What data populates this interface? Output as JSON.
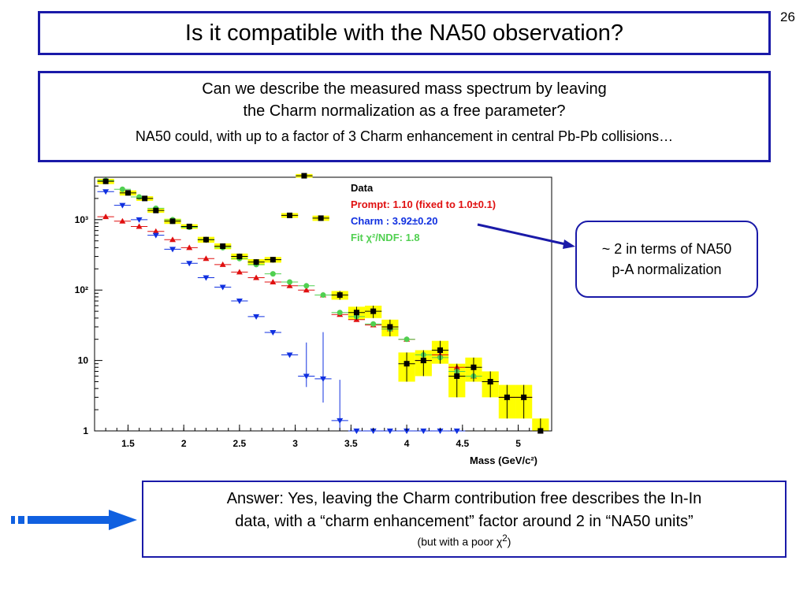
{
  "slide": {
    "number": "26",
    "title": "Is it compatible with the NA50 observation?",
    "question_line1": "Can we describe the measured mass spectrum by leaving",
    "question_line2": "the Charm normalization as a free parameter?",
    "note": "NA50 could, with up to a factor of 3 Charm enhancement in central Pb-Pb collisions…",
    "callout_line1": "~ 2 in terms of NA50",
    "callout_line2": "p-A normalization",
    "answer_line1": "Answer: Yes, leaving the Charm contribution free describes the In-In",
    "answer_line2": "data, with a “charm enhancement” factor around 2 in “NA50 units”",
    "answer_note_prefix": "(but with a poor ",
    "answer_note_chi": "χ",
    "answer_note_sup": "2",
    "answer_note_suffix": ")"
  },
  "colors": {
    "border": "#1a1aa8",
    "data": "#000000",
    "prompt": "#e01010",
    "charm": "#1030e0",
    "fit": "#50d050",
    "error_band": "#ffff00",
    "arrow": "#1060e0"
  },
  "chart_data": {
    "type": "scatter",
    "xlabel": "Mass (GeV/c²)",
    "ylabel": "",
    "xlim": [
      1.2,
      5.3
    ],
    "ylim": [
      1,
      4000
    ],
    "yscale": "log",
    "xticks": [
      "1.5",
      "2",
      "2.5",
      "3",
      "3.5",
      "4",
      "4.5",
      "5"
    ],
    "yticks": [
      "1",
      "10",
      "10²",
      "10³"
    ],
    "legend": {
      "position": "top-right",
      "entries": [
        {
          "text": "Data",
          "color": "#000000"
        },
        {
          "text": "Prompt: 1.10 (fixed to 1.0±0.1)",
          "color": "#e01010"
        },
        {
          "text": "Charm : 3.92±0.20",
          "color": "#1030e0"
        },
        {
          "text": "Fit   χ²/NDF:  1.8",
          "color": "#50d050"
        }
      ]
    },
    "series": [
      {
        "name": "Data",
        "x": [
          1.3,
          1.5,
          1.65,
          1.75,
          1.9,
          2.05,
          2.2,
          2.35,
          2.5,
          2.65,
          2.8,
          3.08,
          2.95,
          3.23,
          3.4,
          3.55,
          3.7,
          3.85,
          4.0,
          4.15,
          4.3,
          4.45,
          4.6,
          4.75,
          4.9,
          5.05,
          5.2
        ],
        "y": [
          3500,
          2400,
          2000,
          1350,
          950,
          800,
          520,
          420,
          300,
          250,
          270,
          4200,
          1150,
          1050,
          85,
          48,
          50,
          30,
          9,
          10,
          14,
          6,
          8,
          5,
          3,
          3,
          1
        ],
        "y_err": [
          300,
          200,
          150,
          100,
          80,
          60,
          50,
          40,
          30,
          25,
          25,
          250,
          90,
          90,
          12,
          10,
          10,
          8,
          4,
          4,
          5,
          3,
          3,
          2,
          1.5,
          1.5,
          0.5
        ]
      },
      {
        "name": "Prompt",
        "x": [
          1.3,
          1.45,
          1.6,
          1.75,
          1.9,
          2.05,
          2.2,
          2.35,
          2.5,
          2.65,
          2.8,
          2.95,
          3.1,
          3.25,
          3.4,
          3.55,
          3.7,
          3.85,
          4.0,
          4.15,
          4.3,
          4.45,
          4.6,
          4.75,
          4.9,
          5.05,
          5.2
        ],
        "y": [
          1100,
          950,
          800,
          680,
          520,
          400,
          280,
          230,
          180,
          150,
          130,
          115,
          100,
          85,
          45,
          38,
          32,
          28,
          20,
          10,
          12,
          8,
          6,
          5,
          3,
          3,
          1
        ]
      },
      {
        "name": "Charm",
        "x": [
          1.3,
          1.45,
          1.6,
          1.75,
          1.9,
          2.05,
          2.2,
          2.35,
          2.5,
          2.65,
          2.8,
          2.95,
          3.1,
          3.25,
          3.4,
          3.55,
          3.7,
          3.85,
          4.0,
          4.15,
          4.3,
          4.45
        ],
        "y": [
          2500,
          1600,
          1000,
          600,
          380,
          240,
          150,
          110,
          70,
          42,
          25,
          12,
          6,
          5.5,
          1.4,
          1,
          1,
          1,
          1,
          1,
          1,
          1
        ]
      },
      {
        "name": "Fit",
        "x": [
          1.3,
          1.45,
          1.6,
          1.75,
          1.9,
          2.05,
          2.2,
          2.35,
          2.5,
          2.65,
          2.8,
          2.95,
          3.1,
          3.25,
          3.4,
          3.55,
          3.7,
          3.85,
          4.0,
          4.15,
          4.3,
          4.45,
          4.6
        ],
        "y": [
          3600,
          2700,
          2100,
          1450,
          1000,
          780,
          520,
          400,
          280,
          230,
          170,
          130,
          115,
          85,
          48,
          42,
          33,
          28,
          20,
          12,
          11,
          7,
          6
        ]
      }
    ]
  }
}
